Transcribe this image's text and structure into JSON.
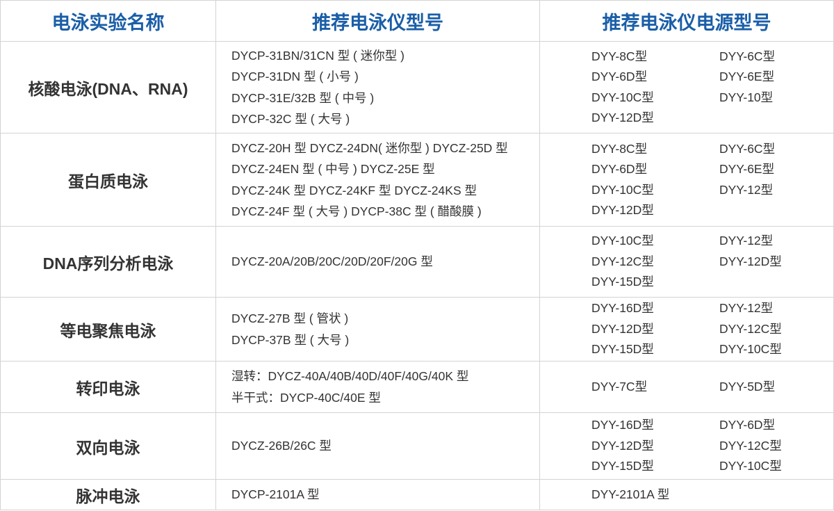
{
  "header": {
    "col1": "电泳实验名称",
    "col2": "推荐电泳仪型号",
    "col3": "推荐电泳仪电源型号"
  },
  "colors": {
    "header_text": "#1a5ea8",
    "border": "#d3d3d3",
    "body_text": "#333333"
  },
  "rows": [
    {
      "name": "核酸电泳(DNA、RNA)",
      "models": [
        "DYCP-31BN/31CN 型 ( 迷你型 )",
        "DYCP-31DN 型 ( 小号 )",
        "DYCP-31E/32B 型 ( 中号 )",
        "DYCP-32C 型 ( 大号 )"
      ],
      "power": [
        "DYY-8C型",
        "DYY-6C型",
        "DYY-6D型",
        "DYY-6E型",
        "DYY-10C型",
        "DYY-10型",
        "DYY-12D型"
      ]
    },
    {
      "name": "蛋白质电泳",
      "models": [
        "DYCZ-20H 型 DYCZ-24DN( 迷你型 ) DYCZ-25D 型",
        "DYCZ-24EN 型 ( 中号 ) DYCZ-25E 型",
        "DYCZ-24K 型  DYCZ-24KF 型  DYCZ-24KS 型",
        "DYCZ-24F 型 ( 大号 )  DYCP-38C 型 ( 醋酸膜 )"
      ],
      "power": [
        "DYY-8C型",
        "DYY-6C型",
        "DYY-6D型",
        "DYY-6E型",
        "DYY-10C型",
        "DYY-12型",
        "DYY-12D型"
      ]
    },
    {
      "name": "DNA序列分析电泳",
      "models": [
        "DYCZ-20A/20B/20C/20D/20F/20G 型"
      ],
      "power": [
        "DYY-10C型",
        "DYY-12型",
        "DYY-12C型",
        "DYY-12D型",
        "DYY-15D型"
      ]
    },
    {
      "name": "等电聚焦电泳",
      "models": [
        "DYCZ-27B 型 ( 管状 )",
        "DYCP-37B 型 ( 大号 )"
      ],
      "power": [
        "DYY-16D型",
        "DYY-12型",
        "DYY-12D型",
        "DYY-12C型",
        "DYY-15D型",
        "DYY-10C型"
      ]
    },
    {
      "name": "转印电泳",
      "models": [
        "湿转：DYCZ-40A/40B/40D/40F/40G/40K 型",
        "半干式：DYCP-40C/40E 型"
      ],
      "power": [
        "DYY-7C型",
        "DYY-5D型"
      ]
    },
    {
      "name": "双向电泳",
      "models": [
        "DYCZ-26B/26C 型"
      ],
      "power": [
        "DYY-16D型",
        "DYY-6D型",
        "DYY-12D型",
        "DYY-12C型",
        "DYY-15D型",
        "DYY-10C型"
      ]
    },
    {
      "name": "脉冲电泳",
      "models": [
        "DYCP-2101A 型"
      ],
      "power": [
        "DYY-2101A 型"
      ]
    }
  ]
}
